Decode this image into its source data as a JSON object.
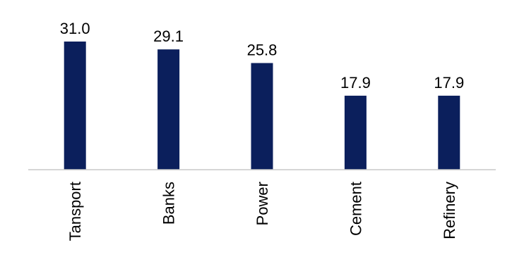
{
  "chart_data": {
    "type": "bar",
    "categories": [
      "Tansport",
      "Banks",
      "Power",
      "Cement",
      "Refinery"
    ],
    "values": [
      31.0,
      29.1,
      25.8,
      17.9,
      17.9
    ],
    "value_labels": [
      "31.0",
      "29.1",
      "25.8",
      "17.9",
      "17.9"
    ],
    "title": "",
    "xlabel": "",
    "ylabel": "",
    "ylim": [
      0,
      31.0
    ],
    "grid": false,
    "legend": "none",
    "bar_color": "#0b1f5c",
    "axis_color": "#c8c8c8"
  }
}
